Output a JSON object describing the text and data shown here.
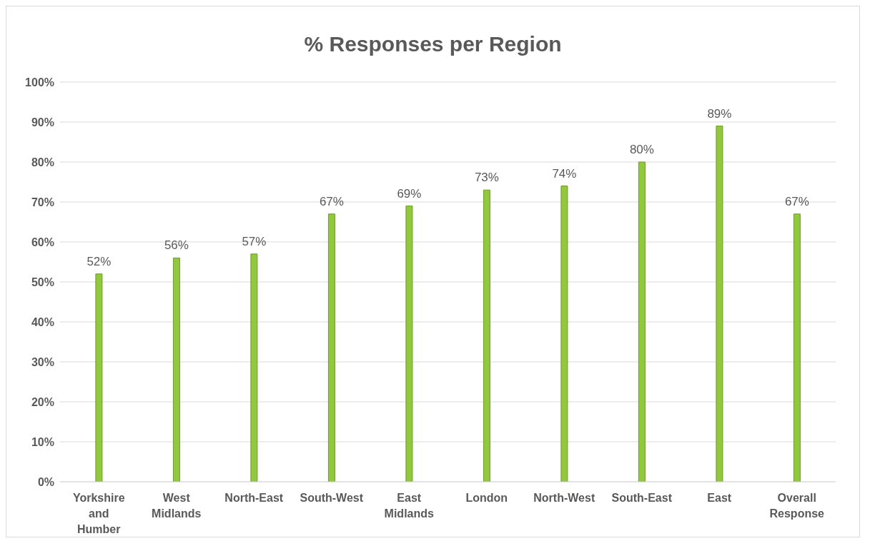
{
  "chart_data": {
    "type": "bar",
    "title": "% Responses per Region",
    "categories": [
      "Yorkshire and Humber",
      "West Midlands",
      "North-East",
      "South-West",
      "East Midlands",
      "London",
      "North-West",
      "South-East",
      "East",
      "Overall Response"
    ],
    "values": [
      52,
      56,
      57,
      67,
      69,
      73,
      74,
      80,
      89,
      67
    ],
    "value_labels": [
      "52%",
      "56%",
      "57%",
      "67%",
      "69%",
      "73%",
      "74%",
      "80%",
      "89%",
      "67%"
    ],
    "color": "#92c83e",
    "ylim": [
      0,
      100
    ],
    "yticks": [
      {
        "value": 0,
        "label": "0%"
      },
      {
        "value": 10,
        "label": "10%"
      },
      {
        "value": 20,
        "label": "20%"
      },
      {
        "value": 30,
        "label": "30%"
      },
      {
        "value": 40,
        "label": "40%"
      },
      {
        "value": 50,
        "label": "50%"
      },
      {
        "value": 60,
        "label": "60%"
      },
      {
        "value": 70,
        "label": "70%"
      },
      {
        "value": 80,
        "label": "80%"
      },
      {
        "value": 90,
        "label": "90%"
      },
      {
        "value": 100,
        "label": "100%"
      }
    ],
    "grid": "y"
  }
}
